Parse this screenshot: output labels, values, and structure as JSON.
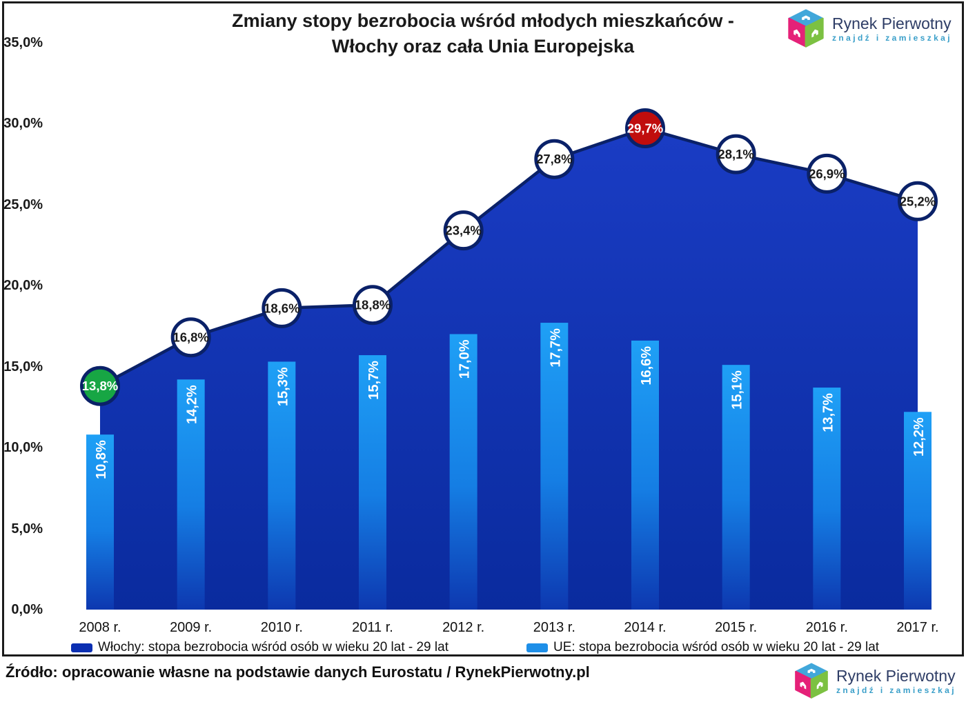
{
  "title": {
    "line1": "Zmiany stopy bezrobocia wśród młodych mieszkańców -",
    "line2": "Włochy oraz cała Unia Europejska"
  },
  "logo": {
    "name": "Rynek Pierwotny",
    "tagline": "znajdź i zamieszkaj"
  },
  "source": "Źródło: opracowanie własne na podstawie danych Eurostatu / RynekPierwotny.pl",
  "chart_data": {
    "type": "combo",
    "categories": [
      "2008 r.",
      "2009 r.",
      "2010 r.",
      "2011 r.",
      "2012 r.",
      "2013 r.",
      "2014 r.",
      "2015 r.",
      "2016 r.",
      "2017 r."
    ],
    "series": [
      {
        "name": "Włochy: stopa bezrobocia wśród osób w wieku 20 lat - 29 lat",
        "type": "area-line",
        "values": [
          13.8,
          16.8,
          18.6,
          18.8,
          23.4,
          27.8,
          29.7,
          28.1,
          26.9,
          25.2
        ],
        "labels": [
          "13,8%",
          "16,8%",
          "18,6%",
          "18,8%",
          "23,4%",
          "27,8%",
          "29,7%",
          "28,1%",
          "26,9%",
          "25,2%"
        ],
        "point_styles": [
          "green",
          "white",
          "white",
          "white",
          "white",
          "white",
          "red",
          "white",
          "white",
          "white"
        ]
      },
      {
        "name": "UE: stopa bezrobocia wśród osób w wieku 20 lat - 29 lat",
        "type": "bar",
        "values": [
          10.8,
          14.2,
          15.3,
          15.7,
          17.0,
          17.7,
          16.6,
          15.1,
          13.7,
          12.2
        ],
        "labels": [
          "10,8%",
          "14,2%",
          "15,3%",
          "15,7%",
          "17,0%",
          "17,7%",
          "16,6%",
          "15,1%",
          "13,7%",
          "12,2%"
        ]
      }
    ],
    "ylim": [
      0,
      35
    ],
    "ytick_step": 5,
    "ytick_labels": [
      "0,0%",
      "5,0%",
      "10,0%",
      "15,0%",
      "20,0%",
      "25,0%",
      "30,0%",
      "35,0%"
    ],
    "grid": false,
    "legend_position": "bottom"
  },
  "colors": {
    "area_top": "#1a3cc4",
    "area_bottom": "#0a2b9e",
    "bar_top": "#1fa0f6",
    "bar_mid": "#157ee4",
    "bar_bottom": "#0d38b0",
    "line": "#0a2168",
    "point_green": "#17a644",
    "point_red": "#c00d0d",
    "point_white": "#ffffff",
    "legend_italy": "#0b2fb2",
    "legend_eu": "#1e8fe8",
    "logo_blue": "#41a7da",
    "logo_pink": "#e52178",
    "logo_green": "#7cc142"
  }
}
